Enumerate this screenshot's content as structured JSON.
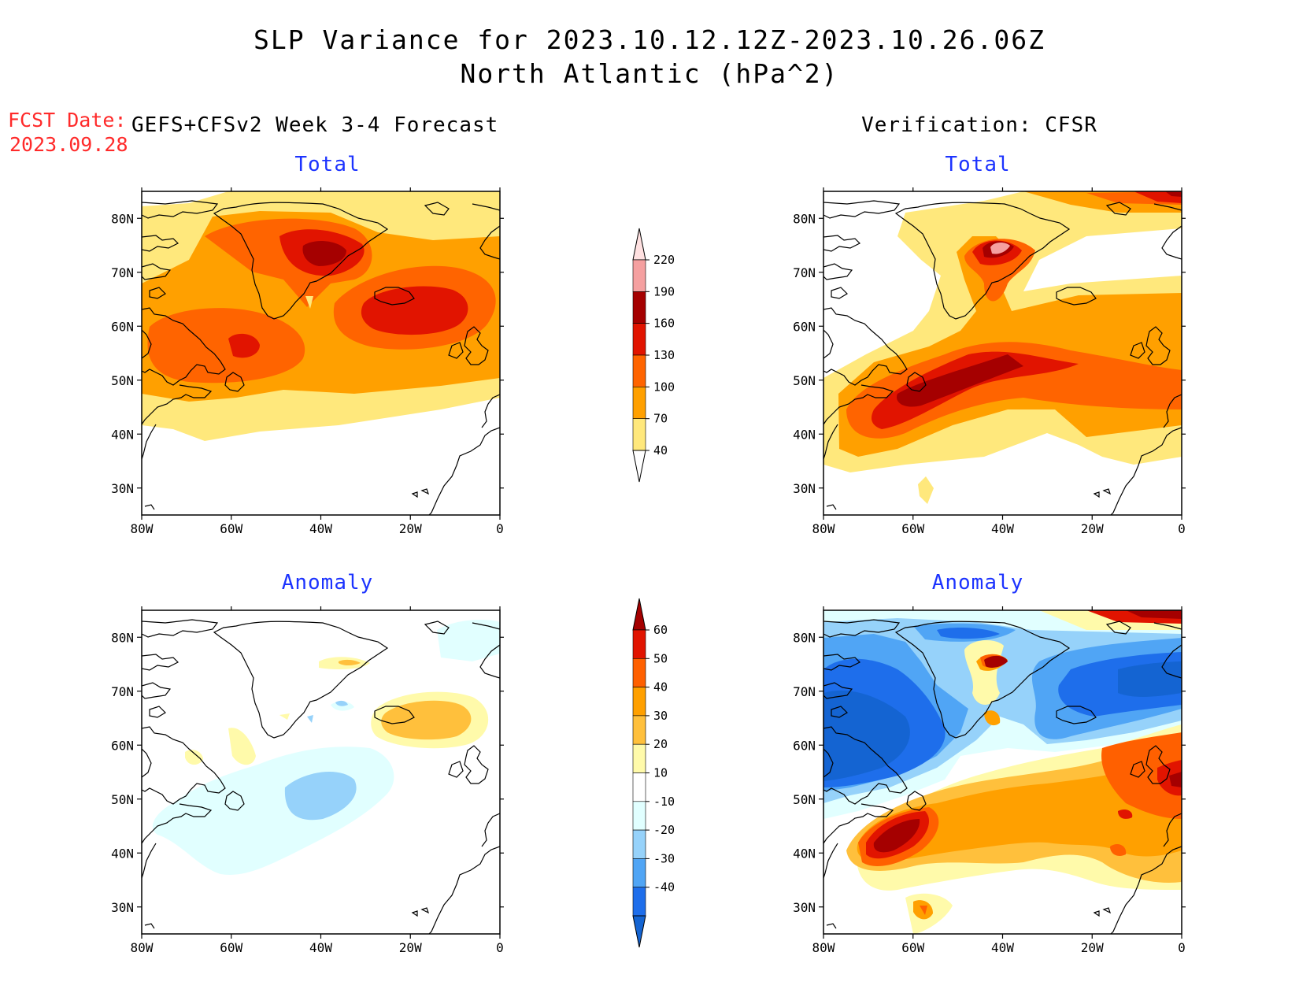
{
  "title": {
    "line1": "SLP Variance for 2023.10.12.12Z-2023.10.26.06Z",
    "line2": "North Atlantic (hPa^2)"
  },
  "fcst": {
    "label": "FCST Date:",
    "date": "2023.09.28"
  },
  "forecast_label": "GEFS+CFSv2 Week 3-4 Forecast",
  "verification_label": "Verification: CFSR",
  "panels": {
    "forecast_total": {
      "title": "Total"
    },
    "verification_total": {
      "title": "Total"
    },
    "forecast_anomaly": {
      "title": "Anomaly"
    },
    "verification_anomaly": {
      "title": "Anomaly"
    }
  },
  "axes": {
    "lon": {
      "values": [
        -80,
        -60,
        -40,
        -20,
        0
      ],
      "labels": [
        "80W",
        "60W",
        "40W",
        "20W",
        "0"
      ]
    },
    "lat": {
      "values": [
        30,
        40,
        50,
        60,
        70,
        80
      ],
      "labels": [
        "30N",
        "40N",
        "50N",
        "60N",
        "70N",
        "80N"
      ]
    },
    "lon_range": [
      -80,
      0
    ],
    "lat_range": [
      25,
      85
    ]
  },
  "colorbars": {
    "total": {
      "levels": [
        "40",
        "70",
        "100",
        "130",
        "160",
        "190",
        "220"
      ],
      "colors": [
        "#ffffff",
        "#ffe87c",
        "#ffa000",
        "#ff6400",
        "#e11400",
        "#a50000",
        "#f5a0a0",
        "#ffe1e1"
      ]
    },
    "anomaly": {
      "levels": [
        "-40",
        "-30",
        "-20",
        "-10",
        "10",
        "20",
        "30",
        "40",
        "50",
        "60"
      ],
      "colors": [
        "#1464d2",
        "#1e6eeb",
        "#50a5f5",
        "#96d2fa",
        "#e1ffff",
        "#ffffff",
        "#fffaaa",
        "#ffc03c",
        "#ffa000",
        "#ff6000",
        "#e11400",
        "#a50000"
      ]
    }
  },
  "colors": {
    "title_text": "#000000",
    "fcst_text": "#ff2a2a",
    "panel_title_text": "#1c33ff"
  }
}
